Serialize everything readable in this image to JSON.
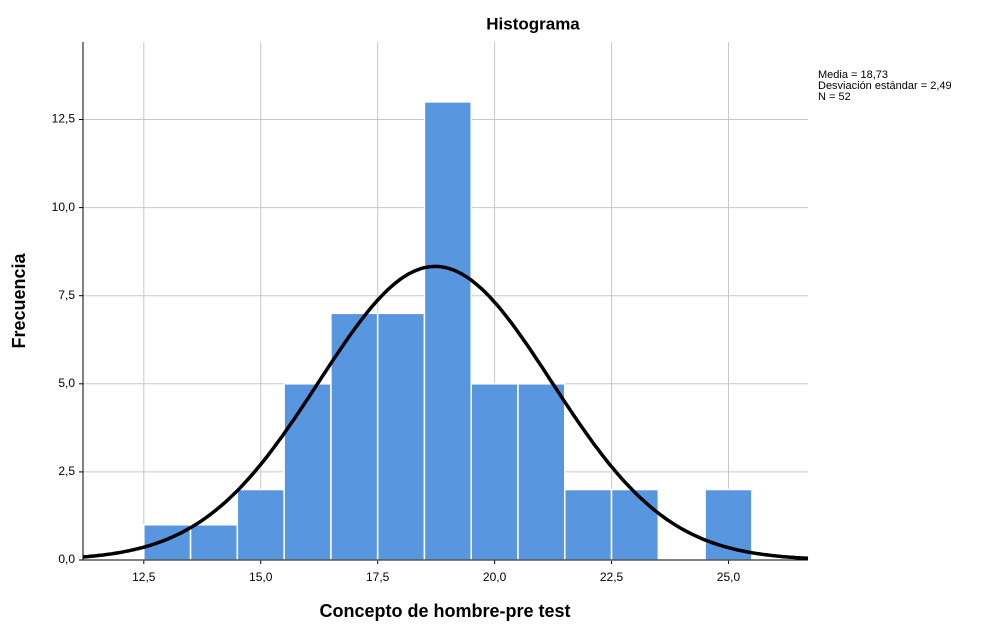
{
  "chart_data": {
    "type": "histogram",
    "title": "Histograma",
    "x_label": "Concepto de hombre-pre test",
    "y_label": "Frecuencia",
    "bins": [
      12.5,
      13.5,
      14.5,
      15.5,
      16.5,
      17.5,
      18.5,
      19.5,
      20.5,
      21.5,
      22.5,
      23.5,
      24.5,
      25.5
    ],
    "values": [
      1,
      1,
      2,
      5,
      7,
      7,
      13,
      5,
      5,
      2,
      2,
      0,
      2
    ],
    "color": "#5896e0",
    "xlim": [
      11.2,
      26.7
    ],
    "ylim": [
      0,
      14.7
    ],
    "xticks": [
      {
        "value": 12.5,
        "label": "12,5"
      },
      {
        "value": 15,
        "label": "15,0"
      },
      {
        "value": 17.5,
        "label": "17,5"
      },
      {
        "value": 20,
        "label": "20,0"
      },
      {
        "value": 22.5,
        "label": "22,5"
      },
      {
        "value": 25,
        "label": "25,0"
      }
    ],
    "yticks": [
      {
        "value": 0,
        "label": "0,0"
      },
      {
        "value": 2.5,
        "label": "2,5"
      },
      {
        "value": 5,
        "label": "5,0"
      },
      {
        "value": 7.5,
        "label": "7,5"
      },
      {
        "value": 10,
        "label": "10,0"
      },
      {
        "value": 12.5,
        "label": "12,5"
      }
    ],
    "grid": true,
    "normal_curve": {
      "mean": 18.73,
      "sd": 2.49,
      "n": 52
    },
    "stats_text": [
      "Media = 18,73",
      "Desviación estándar = 2,49",
      "N = 52"
    ]
  }
}
